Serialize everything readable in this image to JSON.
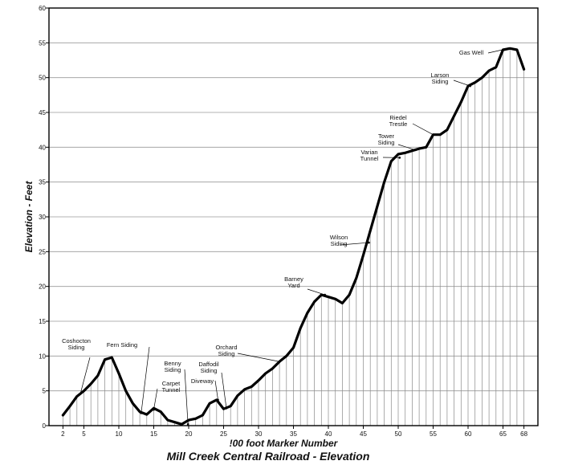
{
  "chart_data": {
    "type": "line",
    "title": "Mill Creek Central Railroad - Elevation",
    "xlabel": "!00 foot  Marker Number",
    "ylabel": "Elevation - Feet",
    "xlim": [
      0,
      70
    ],
    "ylim": [
      0,
      60
    ],
    "xticks": [
      2,
      5,
      10,
      15,
      20,
      25,
      30,
      35,
      40,
      45,
      50,
      55,
      60,
      65,
      68
    ],
    "yticks": [
      0,
      5,
      10,
      15,
      20,
      25,
      30,
      35,
      40,
      45,
      50,
      55,
      60
    ],
    "grid": {
      "horizontal": true,
      "vertical_drop_lines": true
    },
    "series": [
      {
        "x": [
          2,
          3,
          4,
          5,
          6,
          7,
          8,
          9,
          10,
          11,
          12,
          13,
          14,
          15,
          16,
          17,
          18,
          19,
          20,
          21,
          22,
          23,
          24,
          25,
          26,
          27,
          28,
          29,
          30,
          31,
          32,
          33,
          34,
          35,
          36,
          37,
          38,
          39,
          40,
          41,
          42,
          43,
          44,
          45,
          46,
          47,
          48,
          49,
          50,
          51,
          52,
          53,
          54,
          55,
          56,
          57,
          58,
          59,
          60,
          61,
          62,
          63,
          64,
          65,
          66,
          67,
          68
        ],
        "values": [
          1.5,
          2.8,
          4.2,
          5,
          6,
          7.2,
          9.5,
          9.8,
          7.5,
          5,
          3.2,
          2,
          1.6,
          2.5,
          2,
          0.8,
          0.5,
          0.2,
          0.8,
          1.0,
          1.5,
          3.2,
          3.7,
          2.4,
          2.8,
          4.3,
          5.2,
          5.6,
          6.5,
          7.5,
          8.2,
          9.2,
          10,
          11.2,
          14,
          16.2,
          17.8,
          18.8,
          18.5,
          18.2,
          17.6,
          18.8,
          21.2,
          24.5,
          28,
          31.5,
          35,
          38,
          39,
          39.2,
          39.5,
          39.8,
          40,
          41.8,
          41.8,
          42.5,
          44.5,
          46.5,
          48.8,
          49.3,
          50,
          51,
          51.5,
          54,
          54.2,
          54,
          51.2
        ]
      }
    ],
    "annotations": [
      {
        "lines": [
          "Coshocton",
          "Siding"
        ],
        "x": 4.5,
        "y": 4.6
      },
      {
        "lines": [
          "Fern Siding"
        ],
        "x": 13.2,
        "y": 1.8
      },
      {
        "lines": [
          "Carpet",
          "Tunnel"
        ],
        "x": 15,
        "y": 2.3
      },
      {
        "lines": [
          "Benny",
          "Siding"
        ],
        "x": 19.9,
        "y": 0.2
      },
      {
        "lines": [
          "Diveway"
        ],
        "x": 24.2,
        "y": 3.7
      },
      {
        "lines": [
          "Daffodil",
          "Siding"
        ],
        "x": 25.4,
        "y": 2.5
      },
      {
        "lines": [
          "Orchard",
          "Siding"
        ],
        "x": 33,
        "y": 9.2
      },
      {
        "lines": [
          "Barney",
          "Yard"
        ],
        "x": 39.5,
        "y": 18.8
      },
      {
        "lines": [
          "Wilson",
          "Siding"
        ],
        "x": 45.8,
        "y": 26.3
      },
      {
        "lines": [
          "Varian",
          "Tunnel"
        ],
        "x": 50.2,
        "y": 38.5
      },
      {
        "lines": [
          "Tower",
          "Siding"
        ],
        "x": 52.5,
        "y": 39.6
      },
      {
        "lines": [
          "Riedel",
          "Trestle"
        ],
        "x": 55,
        "y": 41.8
      },
      {
        "lines": [
          "Larson",
          "Siding"
        ],
        "x": 60.3,
        "y": 48.8
      },
      {
        "lines": [
          "Gas Well"
        ],
        "x": 65.8,
        "y": 54.2
      }
    ]
  }
}
